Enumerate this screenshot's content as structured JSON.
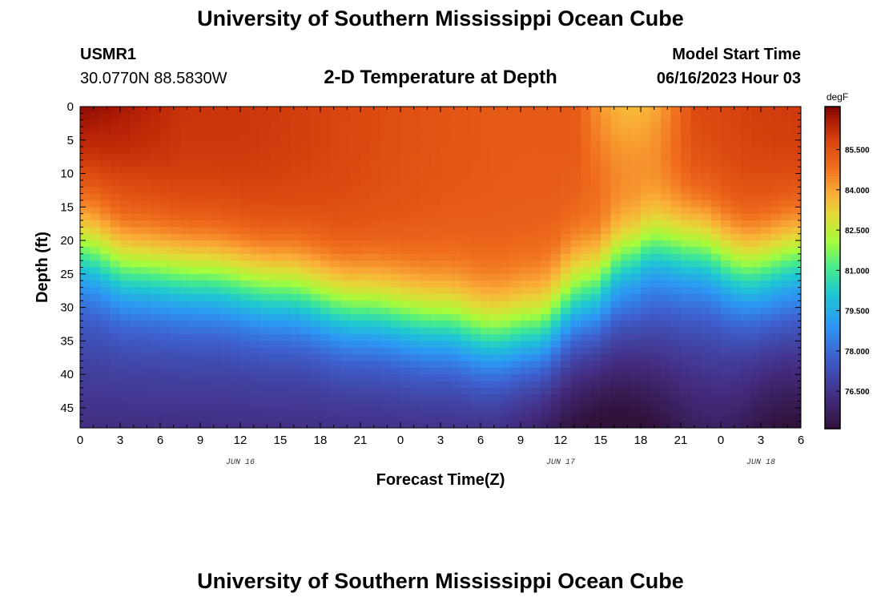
{
  "header": {
    "title": "University of Southern Mississippi Ocean Cube",
    "station_id": "USMR1",
    "coordinates": "30.0770N  88.5830W",
    "model_start_label": "Model Start Time",
    "model_start_value": "06/16/2023 Hour 03"
  },
  "footer": {
    "title": "University of Southern Mississippi Ocean Cube"
  },
  "chart_data": {
    "type": "heatmap",
    "title": "2-D Temperature at Depth",
    "xlabel": "Forecast Time(Z)",
    "ylabel": "Depth (ft)",
    "x_tick_labels": [
      "0",
      "3",
      "6",
      "9",
      "12",
      "15",
      "18",
      "21",
      "0",
      "3",
      "6",
      "9",
      "12",
      "15",
      "18",
      "21",
      "0",
      "3",
      "6"
    ],
    "x_range_hours": [
      0,
      54
    ],
    "date_labels": [
      {
        "text": "JUN 16",
        "hour": 12
      },
      {
        "text": "JUN 17",
        "hour": 36
      },
      {
        "text": "JUN 18",
        "hour": 51
      }
    ],
    "y_ticks": [
      0,
      5,
      10,
      15,
      20,
      25,
      30,
      35,
      40,
      45
    ],
    "y_tick_labels": [
      "0",
      "5",
      "10",
      "15",
      "20",
      "25",
      "30",
      "35",
      "40",
      "45"
    ],
    "y_range_ft": [
      0,
      48
    ],
    "colorbar": {
      "unit": "degF",
      "min": 75.1,
      "max": 87.1,
      "tick_values": [
        85.5,
        84.0,
        82.5,
        81.0,
        79.5,
        78.0,
        76.5
      ],
      "tick_labels": [
        "85.500",
        "84.000",
        "82.500",
        "81.000",
        "79.500",
        "78.000",
        "76.500"
      ]
    },
    "thermocline_depth_ft_by_hour": [
      {
        "hour": 0,
        "depth": 21
      },
      {
        "hour": 4,
        "depth": 24
      },
      {
        "hour": 9,
        "depth": 25
      },
      {
        "hour": 15,
        "depth": 27
      },
      {
        "hour": 21,
        "depth": 30
      },
      {
        "hour": 27,
        "depth": 32
      },
      {
        "hour": 31,
        "depth": 34
      },
      {
        "hour": 34,
        "depth": 33
      },
      {
        "hour": 38,
        "depth": 27
      },
      {
        "hour": 41,
        "depth": 22
      },
      {
        "hour": 43,
        "depth": 20
      },
      {
        "hour": 46,
        "depth": 21
      },
      {
        "hour": 50,
        "depth": 24
      },
      {
        "hour": 54,
        "depth": 22
      }
    ]
  }
}
